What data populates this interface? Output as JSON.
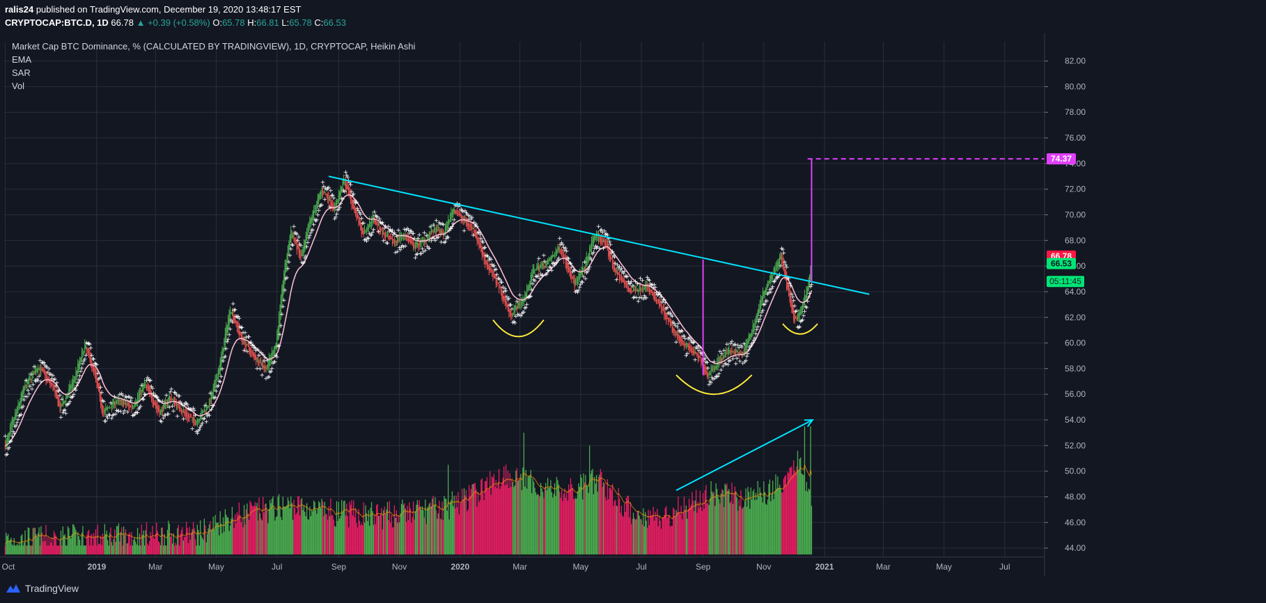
{
  "header": {
    "author": "ralis24",
    "published_text": "published on TradingView.com, December 19, 2020 13:48:17 EST",
    "symbol": "CRYPTOCAP:BTC.D, 1D",
    "price": "66.78",
    "change": "▲ +0.39 (+0.58%)",
    "o_label": "O:",
    "o_value": "65.78",
    "h_label": "H:",
    "h_value": "66.81",
    "l_label": "L:",
    "l_value": "65.78",
    "c_label": "C:",
    "c_value": "66.53"
  },
  "legend": {
    "title": "Market Cap BTC Dominance, % (CALCULATED BY TRADINGVIEW), 1D, CRYPTOCAP, Heikin Ashi",
    "indicators": [
      "EMA",
      "SAR",
      "Vol"
    ]
  },
  "footer": {
    "brand": "TradingView"
  },
  "colors": {
    "background": "#131722",
    "grid": "#2a2e39",
    "up": "#26a69a",
    "candle_up": "#4caf50",
    "candle_down": "#ef5350",
    "vol_up": "#4caf50",
    "vol_down": "#e91e63",
    "ema": "#f8bbd0",
    "sar": "#ffffff",
    "trendline": "#00e5ff",
    "arcs": "#ffeb3b",
    "target": "#e040fb",
    "price_tag": "#ff1744",
    "close_tag": "#00e676"
  },
  "chart_data": {
    "type": "candlestick",
    "title": "Market Cap BTC Dominance, % (CALCULATED BY TRADINGVIEW), 1D, CRYPTOCAP, Heikin Ashi",
    "x_labels": [
      "Oct",
      "2019",
      "Mar",
      "May",
      "Jul",
      "Sep",
      "Nov",
      "2020",
      "Mar",
      "May",
      "Jul",
      "Sep",
      "Nov",
      "2021",
      "Mar",
      "May",
      "Jul"
    ],
    "x_label_dates": [
      "2018-10-01",
      "2019-01-01",
      "2019-03-01",
      "2019-05-01",
      "2019-07-01",
      "2019-09-01",
      "2019-11-01",
      "2020-01-01",
      "2020-03-01",
      "2020-05-01",
      "2020-07-01",
      "2020-09-01",
      "2020-11-01",
      "2021-01-01",
      "2021-03-01",
      "2021-05-01",
      "2021-07-01"
    ],
    "y_ticks": [
      "82.00",
      "80.00",
      "78.00",
      "76.00",
      "74.00",
      "72.00",
      "70.00",
      "68.00",
      "66.00",
      "64.00",
      "62.00",
      "60.00",
      "58.00",
      "56.00",
      "54.00",
      "52.00",
      "50.00",
      "48.00",
      "46.00",
      "44.00"
    ],
    "ylim": [
      43.3,
      83.5
    ],
    "x_range": [
      "2018-09-30",
      "2021-08-10"
    ],
    "price_path": [
      [
        "2018-10-01",
        52
      ],
      [
        "2018-10-20",
        56.5
      ],
      [
        "2018-11-03",
        58.2
      ],
      [
        "2018-11-18",
        56.5
      ],
      [
        "2018-11-25",
        54.8
      ],
      [
        "2018-12-08",
        57
      ],
      [
        "2018-12-20",
        59.8
      ],
      [
        "2018-12-30",
        57.5
      ],
      [
        "2019-01-07",
        54.5
      ],
      [
        "2019-01-20",
        55.5
      ],
      [
        "2019-02-05",
        55
      ],
      [
        "2019-02-18",
        56.8
      ],
      [
        "2019-03-05",
        54.5
      ],
      [
        "2019-03-15",
        55.8
      ],
      [
        "2019-03-30",
        54.5
      ],
      [
        "2019-04-10",
        53.8
      ],
      [
        "2019-04-25",
        55.5
      ],
      [
        "2019-05-05",
        58.5
      ],
      [
        "2019-05-15",
        62.8
      ],
      [
        "2019-05-25",
        60.5
      ],
      [
        "2019-06-05",
        59.2
      ],
      [
        "2019-06-20",
        58
      ],
      [
        "2019-06-30",
        60
      ],
      [
        "2019-07-08",
        65.5
      ],
      [
        "2019-07-15",
        68.8
      ],
      [
        "2019-07-25",
        66.5
      ],
      [
        "2019-08-03",
        69.5
      ],
      [
        "2019-08-15",
        72
      ],
      [
        "2019-08-28",
        70.5
      ],
      [
        "2019-09-06",
        72.8
      ],
      [
        "2019-09-16",
        70.5
      ],
      [
        "2019-09-25",
        68.5
      ],
      [
        "2019-10-05",
        69.8
      ],
      [
        "2019-10-15",
        68.5
      ],
      [
        "2019-10-25",
        67.8
      ],
      [
        "2019-11-05",
        68.5
      ],
      [
        "2019-11-15",
        67.5
      ],
      [
        "2019-11-25",
        68
      ],
      [
        "2019-12-05",
        68.8
      ],
      [
        "2019-12-15",
        68.5
      ],
      [
        "2019-12-25",
        70.5
      ],
      [
        "2020-01-05",
        69.5
      ],
      [
        "2020-01-15",
        68.8
      ],
      [
        "2020-01-25",
        66.5
      ],
      [
        "2020-02-08",
        64.5
      ],
      [
        "2020-02-20",
        62.2
      ],
      [
        "2020-03-05",
        63.5
      ],
      [
        "2020-03-15",
        65.8
      ],
      [
        "2020-03-28",
        66.2
      ],
      [
        "2020-04-10",
        67.5
      ],
      [
        "2020-04-25",
        64.5
      ],
      [
        "2020-05-05",
        66
      ],
      [
        "2020-05-15",
        68.5
      ],
      [
        "2020-05-25",
        67.8
      ],
      [
        "2020-06-05",
        65.5
      ],
      [
        "2020-06-20",
        64
      ],
      [
        "2020-07-05",
        64.5
      ],
      [
        "2020-07-20",
        62.8
      ],
      [
        "2020-08-01",
        61
      ],
      [
        "2020-08-15",
        59.8
      ],
      [
        "2020-08-28",
        58.8
      ],
      [
        "2020-09-05",
        57.5
      ],
      [
        "2020-09-15",
        58.5
      ],
      [
        "2020-09-28",
        59.5
      ],
      [
        "2020-10-10",
        59
      ],
      [
        "2020-10-22",
        61.5
      ],
      [
        "2020-11-03",
        64.5
      ],
      [
        "2020-11-10",
        65.5
      ],
      [
        "2020-11-18",
        66.8
      ],
      [
        "2020-11-25",
        64
      ],
      [
        "2020-12-02",
        61.5
      ],
      [
        "2020-12-10",
        63
      ],
      [
        "2020-12-16",
        64.8
      ],
      [
        "2020-12-19",
        66.78
      ]
    ],
    "volume_path": [
      [
        "2018-10-01",
        44.3
      ],
      [
        "2019-01-01",
        44.5
      ],
      [
        "2019-04-15",
        44.8
      ],
      [
        "2019-05-10",
        46
      ],
      [
        "2019-06-10",
        46.5
      ],
      [
        "2019-07-15",
        47
      ],
      [
        "2019-08-15",
        46.5
      ],
      [
        "2019-10-15",
        46.2
      ],
      [
        "2019-12-15",
        46.8
      ],
      [
        "2020-01-15",
        47.8
      ],
      [
        "2020-02-15",
        49.5
      ],
      [
        "2020-03-20",
        48.5
      ],
      [
        "2020-04-20",
        48
      ],
      [
        "2020-05-20",
        49
      ],
      [
        "2020-06-20",
        46.5
      ],
      [
        "2020-07-20",
        46
      ],
      [
        "2020-08-20",
        47.2
      ],
      [
        "2020-09-15",
        48
      ],
      [
        "2020-10-15",
        47.5
      ],
      [
        "2020-11-15",
        48.5
      ],
      [
        "2020-12-05",
        50.5
      ],
      [
        "2020-12-19",
        48
      ]
    ],
    "volume_spikes": [
      [
        "2019-12-20",
        50.5
      ],
      [
        "2020-03-05",
        53
      ],
      [
        "2020-05-10",
        52
      ],
      [
        "2020-12-12",
        53.5
      ],
      [
        "2020-12-18",
        53.5
      ]
    ],
    "annotations": {
      "descending_trendline": [
        [
          "2019-08-22",
          73
        ],
        [
          "2021-02-15",
          63.8
        ]
      ],
      "volume_trendline": [
        [
          "2020-08-05",
          48.5
        ],
        [
          "2020-12-20",
          54
        ]
      ],
      "arc_1": {
        "start": "2020-02-03",
        "end": "2020-03-25",
        "top": 61.8,
        "bottom": 60.5
      },
      "arc_2": {
        "start": "2020-08-05",
        "end": "2020-10-20",
        "top": 57.5,
        "bottom": 56
      },
      "arc_3": {
        "start": "2020-11-20",
        "end": "2020-12-25",
        "top": 61.5,
        "bottom": 60.7
      },
      "target_level": 74.37,
      "target_line_start": "2020-12-15",
      "target_vline_date": "2020-12-19",
      "measure_vline": {
        "date": "2020-09-01",
        "from": 57.5,
        "to": 66.5
      }
    },
    "price_label": "66.78",
    "close_label": "66.53",
    "countdown_label": "05:11:45",
    "target_label": "74.37"
  }
}
